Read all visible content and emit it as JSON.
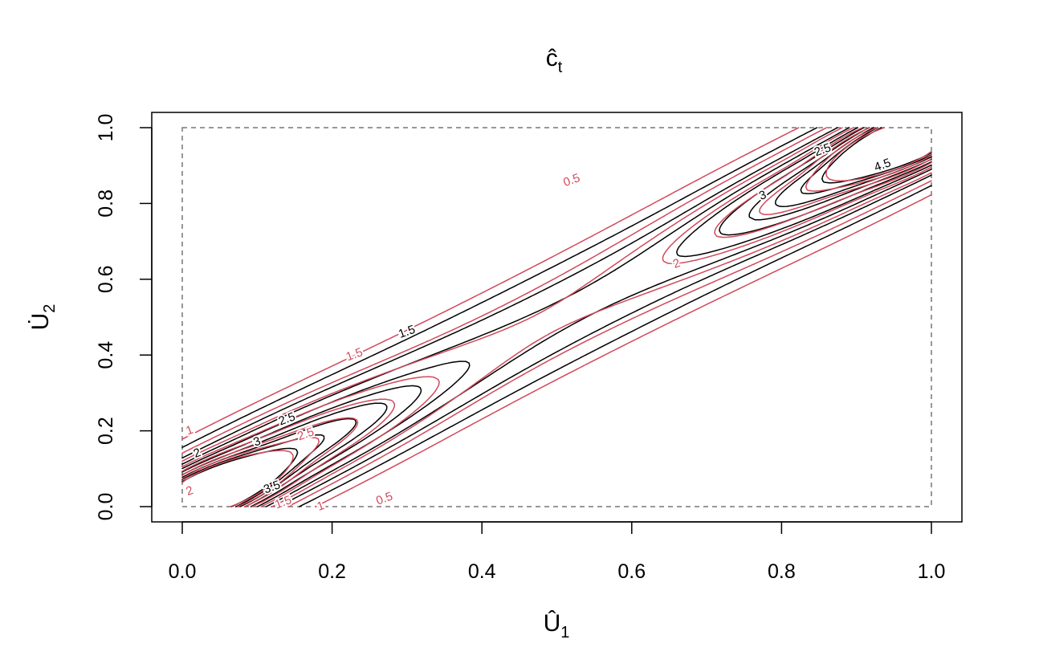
{
  "chart_data": {
    "type": "contour",
    "title": "ĉ",
    "title_sub": "t",
    "xlabel": "Û",
    "xlabel_sub": "1",
    "ylabel": "U̇",
    "ylabel_sub": "2",
    "xlim": [
      -0.04,
      1.04
    ],
    "ylim": [
      -0.04,
      1.04
    ],
    "xticks": [
      "0.0",
      "0.2",
      "0.4",
      "0.6",
      "0.8",
      "1.0"
    ],
    "yticks": [
      "0.0",
      "0.2",
      "0.4",
      "0.6",
      "0.8",
      "1.0"
    ],
    "grid": false,
    "unit_square_dashed": true,
    "colors": {
      "estimate": "#000000",
      "reference": "#D1495B",
      "square": "#777777"
    },
    "series": [
      {
        "color": "#000000",
        "levels": [
          0.5,
          1,
          1.5,
          2,
          2.5,
          3,
          3.5,
          4,
          4.5
        ],
        "labels": [
          {
            "text": "1.5",
            "x": 0.3,
            "y": 0.46
          },
          {
            "text": "2.5",
            "x": 0.14,
            "y": 0.23
          },
          {
            "text": "3",
            "x": 0.1,
            "y": 0.17
          },
          {
            "text": "2",
            "x": 0.02,
            "y": 0.14
          },
          {
            "text": "3.5",
            "x": 0.12,
            "y": 0.05
          },
          {
            "text": "3",
            "x": 0.775,
            "y": 0.82
          },
          {
            "text": "2.5",
            "x": 0.855,
            "y": 0.94
          },
          {
            "text": "4.5",
            "x": 0.935,
            "y": 0.9
          }
        ]
      },
      {
        "color": "#D1495B",
        "levels": [
          0.5,
          1,
          1.5,
          2,
          2.5,
          3,
          3.5,
          4
        ],
        "labels": [
          {
            "text": "0.5",
            "x": 0.52,
            "y": 0.86
          },
          {
            "text": "1.5",
            "x": 0.23,
            "y": 0.4
          },
          {
            "text": "2.5",
            "x": 0.165,
            "y": 0.19
          },
          {
            "text": "1",
            "x": 0.01,
            "y": 0.2
          },
          {
            "text": "2",
            "x": 0.66,
            "y": 0.64
          },
          {
            "text": "1.5",
            "x": 0.135,
            "y": 0.01
          },
          {
            "text": "1",
            "x": 0.185,
            "y": 0.0
          },
          {
            "text": "0.5",
            "x": 0.27,
            "y": 0.02
          },
          {
            "text": "2",
            "x": 0.01,
            "y": 0.04
          }
        ]
      }
    ]
  }
}
